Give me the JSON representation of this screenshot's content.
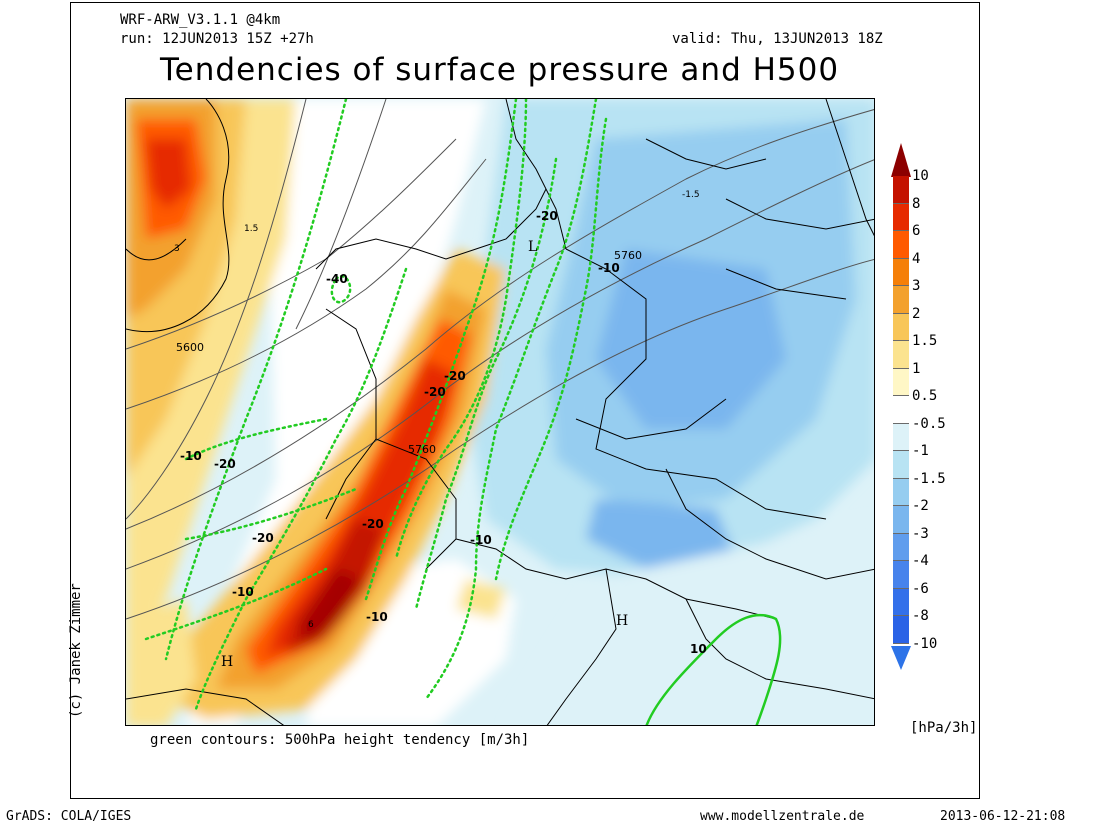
{
  "header": {
    "model": "WRF-ARW_V3.1.1 @4km",
    "run": "run: 12JUN2013 15Z +27h",
    "valid": "valid: Thu, 13JUN2013 18Z",
    "title": "Tendencies of surface pressure and H500"
  },
  "credit": "(c) Janek Zimmer",
  "caption": "green contours: 500hPa height tendency [m/3h]",
  "colorbar": {
    "unit": "[hPa/3h]",
    "labels": [
      "10",
      "8",
      "6",
      "4",
      "3",
      "2",
      "1.5",
      "1",
      "0.5",
      "-0.5",
      "-1",
      "-1.5",
      "-2",
      "-3",
      "-4",
      "-6",
      "-8",
      "-10"
    ],
    "colors": [
      "#a50000",
      "#c41200",
      "#e62a00",
      "#ff5a00",
      "#f57f08",
      "#f3a12d",
      "#f8c659",
      "#fbe38f",
      "#fff7c6",
      "#ffffff",
      "#ddf2f8",
      "#b8e3f3",
      "#96cdf0",
      "#7ab6ee",
      "#609ded",
      "#4783ec",
      "#3370ea",
      "#2a63e6"
    ],
    "top_arrow_color": "#8c0000",
    "bottom_arrow_color": "#2d73e8"
  },
  "map_labels": {
    "isobars": [
      "5600",
      "5760",
      "5760"
    ],
    "green": [
      "-40",
      "-20",
      "-20",
      "-20",
      "-20",
      "-20",
      "-20",
      "-10",
      "-10",
      "-10",
      "-10",
      "-10",
      "10"
    ],
    "values": [
      "1.5",
      "3",
      "-1.5",
      "6"
    ],
    "centers": [
      "H",
      "L",
      "H"
    ]
  },
  "footer": {
    "left": "GrADS: COLA/IGES",
    "center": "www.modellzentrale.de",
    "right": "2013-06-12-21:08"
  }
}
